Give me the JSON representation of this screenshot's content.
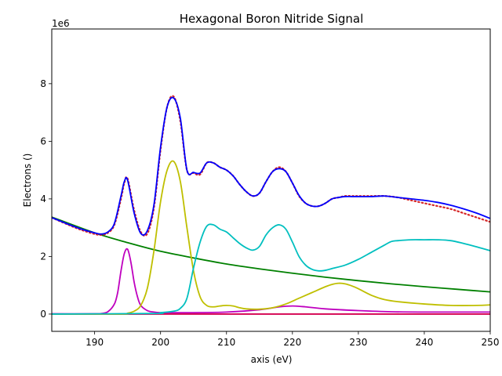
{
  "chart_data": {
    "type": "line",
    "title": "Hexagonal Boron Nitride Signal",
    "xlabel": "axis (eV)",
    "ylabel": "Electrons ()",
    "y_multiplier": "1e6",
    "xlim": [
      183.5,
      250
    ],
    "ylim": [
      -0.6,
      9.9
    ],
    "xticks": [
      190,
      200,
      210,
      220,
      230,
      240,
      250
    ],
    "yticks": [
      0,
      2,
      4,
      6,
      8
    ],
    "grid": false,
    "series": [
      {
        "color": "#d62728",
        "style": "dotted",
        "x": [
          183.5,
          186,
          188,
          190,
          191,
          192,
          193,
          194,
          194.5,
          195,
          196,
          197,
          198,
          199,
          200,
          201,
          202,
          203,
          204,
          205,
          206,
          207,
          208,
          209,
          210,
          211,
          212,
          213,
          214,
          215,
          216,
          217,
          218,
          219,
          220,
          221,
          222,
          223,
          224,
          225,
          226,
          227,
          228,
          229,
          230,
          232,
          234,
          236,
          238,
          240,
          242,
          244,
          246,
          248,
          250
        ],
        "y": [
          3.35,
          3.1,
          2.92,
          2.78,
          2.75,
          2.82,
          3.1,
          4.0,
          4.55,
          4.7,
          3.6,
          2.85,
          2.8,
          3.7,
          5.7,
          7.2,
          7.55,
          6.7,
          5.0,
          4.9,
          4.85,
          5.25,
          5.25,
          5.1,
          5.0,
          4.8,
          4.5,
          4.25,
          4.1,
          4.2,
          4.6,
          4.95,
          5.1,
          4.95,
          4.55,
          4.1,
          3.85,
          3.75,
          3.75,
          3.85,
          4.0,
          4.05,
          4.1,
          4.1,
          4.1,
          4.1,
          4.1,
          4.05,
          3.95,
          3.85,
          3.75,
          3.65,
          3.5,
          3.35,
          3.2
        ]
      },
      {
        "color": "#0000ff",
        "style": "solid",
        "x": [
          183.5,
          186,
          188,
          190,
          191,
          192,
          193,
          194,
          194.5,
          195,
          196,
          197,
          198,
          199,
          200,
          201,
          202,
          203,
          204,
          205,
          206,
          207,
          208,
          209,
          210,
          211,
          212,
          213,
          214,
          215,
          216,
          217,
          218,
          219,
          220,
          221,
          222,
          223,
          224,
          225,
          226,
          227,
          228,
          229,
          230,
          232,
          234,
          236,
          238,
          240,
          242,
          244,
          246,
          248,
          250
        ],
        "y": [
          3.35,
          3.12,
          2.95,
          2.82,
          2.78,
          2.85,
          3.15,
          4.1,
          4.6,
          4.65,
          3.5,
          2.8,
          2.9,
          3.8,
          5.8,
          7.2,
          7.5,
          6.8,
          5.0,
          4.92,
          4.9,
          5.25,
          5.25,
          5.1,
          5.0,
          4.8,
          4.5,
          4.25,
          4.1,
          4.2,
          4.6,
          4.95,
          5.05,
          4.95,
          4.55,
          4.12,
          3.85,
          3.75,
          3.75,
          3.85,
          4.0,
          4.05,
          4.08,
          4.08,
          4.08,
          4.08,
          4.1,
          4.05,
          4.0,
          3.95,
          3.88,
          3.78,
          3.65,
          3.5,
          3.32
        ]
      },
      {
        "color": "#008000",
        "style": "solid",
        "x": [
          183.5,
          190,
          195,
          200,
          205,
          210,
          215,
          220,
          225,
          230,
          235,
          240,
          245,
          250
        ],
        "y": [
          3.37,
          2.82,
          2.48,
          2.18,
          1.95,
          1.74,
          1.57,
          1.42,
          1.28,
          1.16,
          1.05,
          0.95,
          0.86,
          0.77
        ]
      },
      {
        "color": "#bf00bf",
        "style": "solid",
        "x": [
          183.5,
          190,
          191,
          192,
          193,
          193.5,
          194,
          194.5,
          195,
          195.5,
          196,
          196.5,
          197,
          198,
          199,
          200,
          202,
          205,
          210,
          215,
          218,
          220,
          222,
          225,
          230,
          235,
          240,
          245,
          250
        ],
        "y": [
          0.01,
          0.01,
          0.02,
          0.08,
          0.35,
          0.75,
          1.5,
          2.1,
          2.25,
          1.8,
          1.1,
          0.6,
          0.3,
          0.12,
          0.07,
          0.05,
          0.05,
          0.05,
          0.07,
          0.15,
          0.25,
          0.28,
          0.25,
          0.18,
          0.12,
          0.08,
          0.07,
          0.07,
          0.07
        ]
      },
      {
        "color": "#bfbf00",
        "style": "solid",
        "x": [
          183.5,
          194,
          195,
          196,
          197,
          198,
          199,
          200,
          201,
          202,
          203,
          204,
          205,
          206,
          207,
          208,
          209,
          210,
          211,
          212,
          213,
          215,
          217,
          219,
          221,
          223,
          225,
          226,
          227,
          228,
          229,
          230,
          232,
          234,
          236,
          240,
          244,
          248,
          250
        ],
        "y": [
          0.0,
          0.0,
          0.03,
          0.1,
          0.3,
          0.9,
          2.2,
          3.9,
          5.0,
          5.3,
          4.6,
          3.0,
          1.5,
          0.6,
          0.3,
          0.25,
          0.28,
          0.3,
          0.28,
          0.22,
          0.18,
          0.17,
          0.22,
          0.35,
          0.55,
          0.75,
          0.95,
          1.03,
          1.07,
          1.05,
          0.98,
          0.88,
          0.65,
          0.5,
          0.43,
          0.35,
          0.3,
          0.3,
          0.32
        ]
      },
      {
        "color": "#00bfbf",
        "style": "solid",
        "x": [
          183.5,
          199,
          200,
          202,
          203,
          204,
          205,
          206,
          207,
          208,
          209,
          210,
          211,
          212,
          213,
          214,
          215,
          216,
          217,
          218,
          219,
          220,
          221,
          222,
          223,
          224,
          225,
          226,
          228,
          230,
          232,
          234,
          235,
          236,
          238,
          240,
          242,
          244,
          246,
          248,
          250
        ],
        "y": [
          0.0,
          0.02,
          0.05,
          0.1,
          0.2,
          0.55,
          1.6,
          2.5,
          3.05,
          3.1,
          2.95,
          2.85,
          2.65,
          2.45,
          2.3,
          2.22,
          2.35,
          2.75,
          3.0,
          3.1,
          2.95,
          2.5,
          2.0,
          1.7,
          1.55,
          1.5,
          1.52,
          1.58,
          1.7,
          1.9,
          2.15,
          2.4,
          2.52,
          2.55,
          2.58,
          2.58,
          2.58,
          2.55,
          2.45,
          2.33,
          2.2
        ]
      },
      {
        "color": "#d40050",
        "style": "solid",
        "x": [
          183.5,
          250
        ],
        "y": [
          0.0,
          0.0
        ]
      }
    ]
  }
}
